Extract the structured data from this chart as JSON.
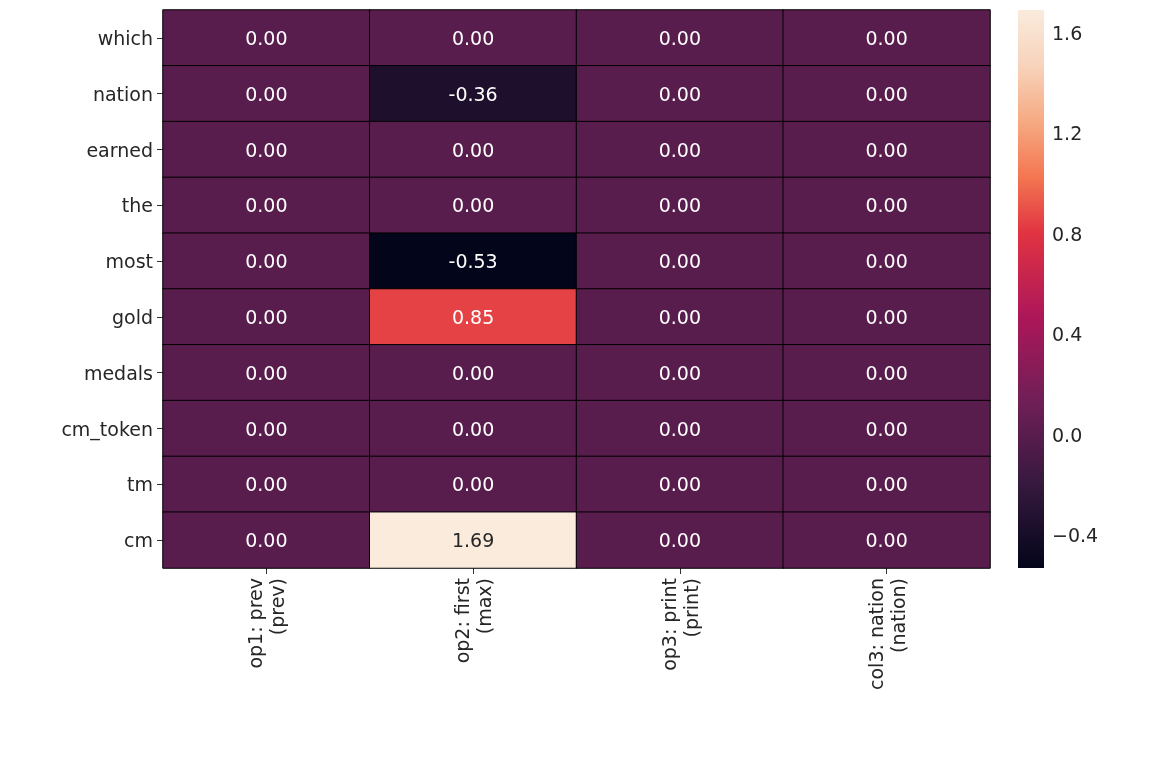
{
  "chart_data": {
    "type": "heatmap",
    "categories": [
      "op1: prev\n(prev)",
      "op2: first\n(max)",
      "op3: print\n(print)",
      "col3: nation\n(nation)"
    ],
    "y_categories": [
      "which",
      "nation",
      "earned",
      "the",
      "most",
      "gold",
      "medals",
      "cm_token",
      "tm",
      "cm"
    ],
    "cells": [
      [
        0,
        0,
        0,
        0
      ],
      [
        0,
        -0.36,
        0,
        0
      ],
      [
        0,
        0,
        0,
        0
      ],
      [
        0,
        0,
        0,
        0
      ],
      [
        0,
        -0.53,
        0,
        0
      ],
      [
        0,
        0.85,
        0,
        0
      ],
      [
        0,
        0,
        0,
        0
      ],
      [
        0,
        0,
        0,
        0
      ],
      [
        0,
        0,
        0,
        0
      ],
      [
        0,
        1.69,
        0,
        0
      ]
    ],
    "cell_labels": [
      [
        "0.00",
        "0.00",
        "0.00",
        "0.00"
      ],
      [
        "0.00",
        "-0.36",
        "0.00",
        "0.00"
      ],
      [
        "0.00",
        "0.00",
        "0.00",
        "0.00"
      ],
      [
        "0.00",
        "0.00",
        "0.00",
        "0.00"
      ],
      [
        "0.00",
        "-0.53",
        "0.00",
        "0.00"
      ],
      [
        "0.00",
        "0.85",
        "0.00",
        "0.00"
      ],
      [
        "0.00",
        "0.00",
        "0.00",
        "0.00"
      ],
      [
        "0.00",
        "0.00",
        "0.00",
        "0.00"
      ],
      [
        "0.00",
        "0.00",
        "0.00",
        "0.00"
      ],
      [
        "0.00",
        "1.69",
        "0.00",
        "0.00"
      ]
    ],
    "clim": [
      -0.53,
      1.69
    ],
    "cticks": [
      {
        "value": -0.4,
        "label": "−0.4"
      },
      {
        "value": 0,
        "label": "0.0"
      },
      {
        "value": 0.4,
        "label": "0.4"
      },
      {
        "value": 0.8,
        "label": "0.8"
      },
      {
        "value": 1.2,
        "label": "1.2"
      },
      {
        "value": 1.6,
        "label": "1.6"
      }
    ]
  }
}
